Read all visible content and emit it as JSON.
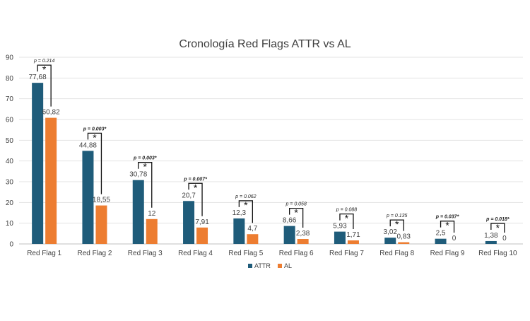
{
  "chart_data": {
    "type": "bar",
    "title": "Cronología Red Flags ATTR vs AL",
    "xlabel": "",
    "ylabel": "",
    "ylim": [
      0,
      90
    ],
    "yticks": [
      0,
      10,
      20,
      30,
      40,
      50,
      60,
      70,
      80,
      90
    ],
    "grid": "horizontal",
    "legend_position": "bottom",
    "categories": [
      "Red Flag 1",
      "Red Flag 2",
      "Red Flag 3",
      "Red Flag 4",
      "Red Flag 5",
      "Red Flag 6",
      "Red Flag 7",
      "Red Flag 8",
      "Red Flag 9",
      "Red Flag 10"
    ],
    "series": [
      {
        "name": "ATTR",
        "color": "#1F5C7A",
        "values": [
          77.68,
          44.88,
          30.78,
          20.7,
          12.3,
          8.66,
          5.93,
          3.02,
          2.5,
          1.38
        ],
        "labels": [
          "77,68",
          "44,88",
          "30,78",
          "20,7",
          "12,3",
          "8,66",
          "5,93",
          "3,02",
          "2,5",
          "1,38"
        ]
      },
      {
        "name": "AL",
        "color": "#ED7D31",
        "values": [
          60.82,
          18.55,
          12,
          7.91,
          4.7,
          2.38,
          1.71,
          0.83,
          0,
          0
        ],
        "labels": [
          "60,82",
          "18,55",
          "12",
          "7,91",
          "4,7",
          "2,38",
          "1,71",
          "0,83",
          "0",
          "0"
        ]
      }
    ],
    "annotations": {
      "p_values": [
        "p = 0.214",
        "p = 0.003*",
        "p = 0.003*",
        "p = 0.007*",
        "p = 0.062",
        "p = 0.058",
        "p = 0.088",
        "p = 0.135",
        "p = 0.037*",
        "p = 0.018*"
      ],
      "significant": [
        false,
        true,
        true,
        true,
        false,
        false,
        false,
        false,
        true,
        true
      ],
      "marker": "*"
    }
  }
}
